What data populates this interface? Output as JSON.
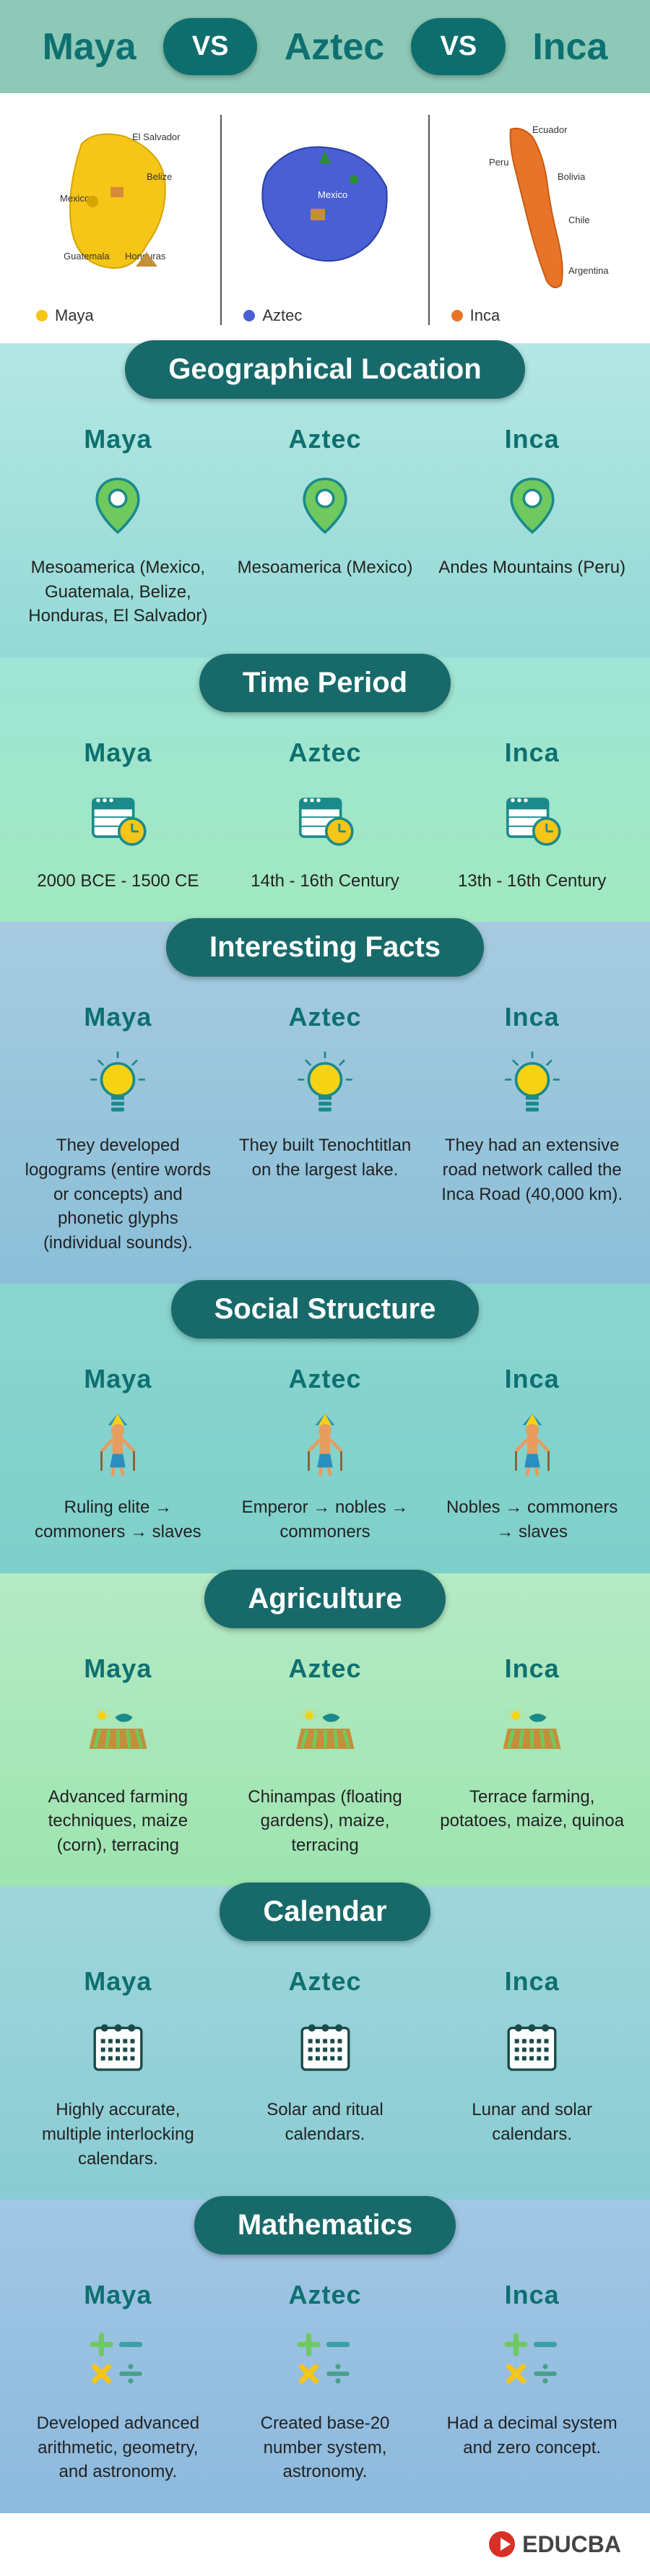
{
  "header": {
    "title1": "Maya",
    "title2": "Aztec",
    "title3": "Inca",
    "vs": "VS",
    "colors": {
      "maya": "#0e7070",
      "aztec": "#0e7070",
      "inca": "#0e7070"
    }
  },
  "maps": {
    "maya": {
      "label": "Maya",
      "color": "#f5c518",
      "locations": [
        "El Salvador",
        "Belize",
        "Mexico",
        "Guatemala",
        "Honduras"
      ]
    },
    "aztec": {
      "label": "Aztec",
      "color": "#4a5fd4",
      "locations": [
        "Mexico"
      ]
    },
    "inca": {
      "label": "Inca",
      "color": "#e8742a",
      "locations": [
        "Ecuador",
        "Peru",
        "Bolivia",
        "Chile",
        "Argentina"
      ]
    }
  },
  "sections": [
    {
      "id": "geo",
      "title": "Geographical Location",
      "bg": "bg-geo",
      "icon": "pin",
      "items": [
        {
          "head": "Maya",
          "text": "Mesoamerica (Mexico, Guatemala, Belize, Honduras, El Salvador)"
        },
        {
          "head": "Aztec",
          "text": "Mesoamerica (Mexico)"
        },
        {
          "head": "Inca",
          "text": "Andes Mountains (Peru)"
        }
      ]
    },
    {
      "id": "time",
      "title": "Time Period",
      "bg": "bg-time",
      "icon": "calendar-clock",
      "items": [
        {
          "head": "Maya",
          "text": "2000 BCE - 1500 CE"
        },
        {
          "head": "Aztec",
          "text": "14th - 16th Century"
        },
        {
          "head": "Inca",
          "text": "13th - 16th Century"
        }
      ]
    },
    {
      "id": "facts",
      "title": "Interesting Facts",
      "bg": "bg-facts",
      "icon": "bulb",
      "items": [
        {
          "head": "Maya",
          "text": "They developed logograms (entire words or concepts) and phonetic glyphs (individual sounds)."
        },
        {
          "head": "Aztec",
          "text": "They built Tenochtitlan on the largest lake."
        },
        {
          "head": "Inca",
          "text": "They had an extensive road network called the Inca Road (40,000 km)."
        }
      ]
    },
    {
      "id": "social",
      "title": "Social Structure",
      "bg": "bg-social",
      "icon": "figure",
      "items": [
        {
          "head": "Maya",
          "text": "Ruling elite → commoners → slaves"
        },
        {
          "head": "Aztec",
          "text": "Emperor → nobles → commoners"
        },
        {
          "head": "Inca",
          "text": "Nobles → commoners → slaves"
        }
      ]
    },
    {
      "id": "agri",
      "title": "Agriculture",
      "bg": "bg-agri",
      "icon": "field",
      "items": [
        {
          "head": "Maya",
          "text": "Advanced farming techniques, maize (corn), terracing"
        },
        {
          "head": "Aztec",
          "text": "Chinampas (floating gardens), maize, terracing"
        },
        {
          "head": "Inca",
          "text": "Terrace farming, potatoes, maize, quinoa"
        }
      ]
    },
    {
      "id": "cal",
      "title": "Calendar",
      "bg": "bg-cal",
      "icon": "calendar",
      "items": [
        {
          "head": "Maya",
          "text": "Highly accurate, multiple interlocking calendars."
        },
        {
          "head": "Aztec",
          "text": "Solar and ritual calendars."
        },
        {
          "head": "Inca",
          "text": "Lunar and solar calendars."
        }
      ]
    },
    {
      "id": "math",
      "title": "Mathematics",
      "bg": "bg-math",
      "icon": "math",
      "items": [
        {
          "head": "Maya",
          "text": "Developed advanced arithmetic, geometry, and astronomy."
        },
        {
          "head": "Aztec",
          "text": "Created base-20 number system, astronomy."
        },
        {
          "head": "Inca",
          "text": "Had a decimal system and zero concept."
        }
      ]
    }
  ],
  "footer": {
    "brand": "EDUCBA"
  },
  "icon_colors": {
    "pin_fill": "#6fc95f",
    "pin_stroke": "#1a8a8a",
    "clock_body": "#fff",
    "clock_stroke": "#1a8a8a",
    "clock_face": "#f5c518",
    "bulb_fill": "#f5d214",
    "bulb_stroke": "#1a8a8a",
    "figure_body": "#e89c5e",
    "figure_head": "#2a8fbf",
    "field_green": "#6fc95f",
    "field_brown": "#c48e3a",
    "field_sun": "#f5d214",
    "cal_body": "#fff",
    "cal_stroke": "#1a4a4a",
    "math_plus": "#6fc95f",
    "math_minus": "#3a9fa8",
    "math_times": "#f5c518",
    "math_div": "#4a9f8a"
  }
}
